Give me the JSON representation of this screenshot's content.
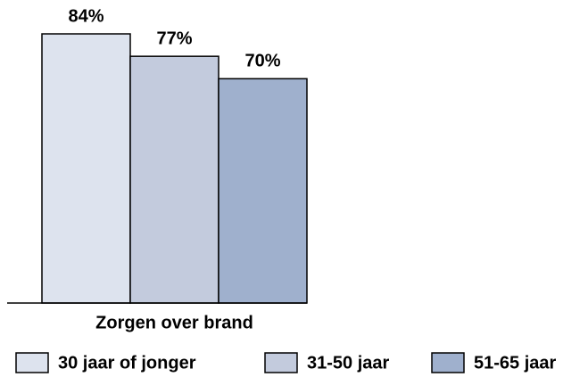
{
  "chart_data": {
    "type": "bar",
    "categories": [
      "Zorgen over brand"
    ],
    "series": [
      {
        "name": "30 jaar of jonger",
        "color": "#dde3ee",
        "values": [
          84
        ],
        "value_labels": [
          "84%"
        ]
      },
      {
        "name": "31-50 jaar",
        "color": "#c3cbdd",
        "values": [
          77
        ],
        "value_labels": [
          "77%"
        ]
      },
      {
        "name": "51-65 jaar",
        "color": "#9fb0cd",
        "values": [
          70
        ],
        "value_labels": [
          "70%"
        ]
      }
    ]
  }
}
